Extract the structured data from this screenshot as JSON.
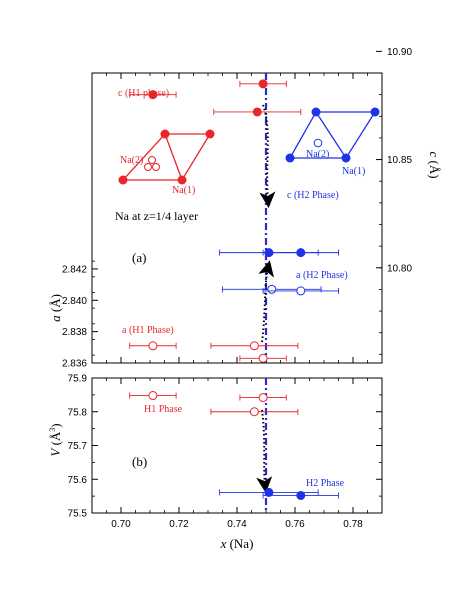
{
  "colors": {
    "red": "#e8262b",
    "blue": "#1f33e6",
    "vline": "#2a2ad0",
    "black": "#000000"
  },
  "chart_data": [
    {
      "panel": "(a)",
      "type": "scatter",
      "xlabel": "x (Na)",
      "x_ticks": [
        "0.70",
        "0.72",
        "0.74",
        "0.76",
        "0.78"
      ],
      "xlim": [
        0.69,
        0.79
      ],
      "left_axis": {
        "label": "a (Å)",
        "ylim": [
          2.836,
          2.8545
        ],
        "ticks": [
          "2.836",
          "2.838",
          "2.840",
          "2.842"
        ]
      },
      "right_axis": {
        "label": "c (Å)",
        "ylim": [
          10.756,
          10.89
        ],
        "ticks": [
          "10.80",
          "10.85",
          "10.90"
        ]
      },
      "series": [
        {
          "name": "c (H1 phase)",
          "axis": "right",
          "marker": "filled",
          "color": "red",
          "points": [
            {
              "x": 0.711,
              "y": 10.88,
              "xerr": 0.008
            },
            {
              "x": 0.747,
              "y": 10.872,
              "xerr": 0.015
            },
            {
              "x": 0.749,
              "y": 10.885,
              "xerr": 0.008
            }
          ]
        },
        {
          "name": "c (H2 Phase)",
          "axis": "right",
          "marker": "filled",
          "color": "blue",
          "points": [
            {
              "x": 0.751,
              "y": 10.807,
              "xerr": 0.017
            },
            {
              "x": 0.762,
              "y": 10.807,
              "xerr": 0.013
            }
          ]
        },
        {
          "name": "a (H1 Phase)",
          "axis": "left",
          "marker": "open",
          "color": "red",
          "points": [
            {
              "x": 0.711,
              "y": 2.8371,
              "xerr": 0.008
            },
            {
              "x": 0.746,
              "y": 2.8371,
              "xerr": 0.015
            },
            {
              "x": 0.749,
              "y": 2.8363,
              "xerr": 0.008
            }
          ]
        },
        {
          "name": "a (H2 Phase)",
          "axis": "left",
          "marker": "open",
          "color": "blue",
          "points": [
            {
              "x": 0.752,
              "y": 2.8407,
              "xerr": 0.017
            },
            {
              "x": 0.762,
              "y": 2.8406,
              "xerr": 0.013
            }
          ]
        }
      ],
      "vline_x": 0.75,
      "annotations": {
        "c_h1": "c (H1 phase)",
        "c_h2": "c (H2 Phase)",
        "a_h1": "a (H1 Phase)",
        "a_h2": "a (H2 Phase)",
        "layer": "Na at z=1/4 layer",
        "na2_h1": "Na(2)",
        "na1_h1": "Na(1)",
        "na2_h2": "Na(2)",
        "na1_h2": "Na(1)"
      }
    },
    {
      "panel": "(b)",
      "type": "scatter",
      "xlabel": "x (Na)",
      "ylabel": "V (Å³)",
      "xlim": [
        0.69,
        0.79
      ],
      "ylim": [
        75.5,
        75.9
      ],
      "y_ticks": [
        "75.5",
        "75.6",
        "75.7",
        "75.8",
        "75.9"
      ],
      "series": [
        {
          "name": "H1 Phase",
          "marker": "open",
          "color": "red",
          "points": [
            {
              "x": 0.711,
              "y": 75.848,
              "xerr": 0.008
            },
            {
              "x": 0.746,
              "y": 75.8,
              "xerr": 0.015
            },
            {
              "x": 0.749,
              "y": 75.842,
              "xerr": 0.008
            }
          ]
        },
        {
          "name": "H2 Phase",
          "marker": "filled",
          "color": "blue",
          "points": [
            {
              "x": 0.751,
              "y": 75.561,
              "xerr": 0.017
            },
            {
              "x": 0.762,
              "y": 75.552,
              "xerr": 0.013
            }
          ]
        }
      ],
      "vline_x": 0.75
    }
  ]
}
